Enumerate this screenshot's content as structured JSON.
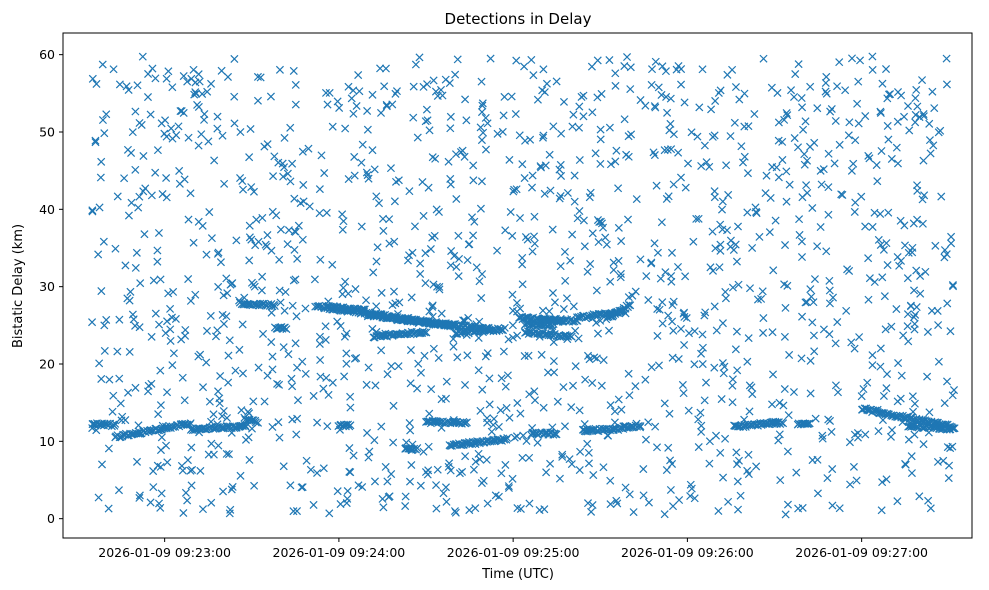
{
  "chart_data": {
    "type": "scatter",
    "title": "Detections in Delay",
    "xlabel": "Time (UTC)",
    "ylabel": "Bistatic Delay (km)",
    "marker": "x",
    "color": "#1f77b4",
    "grid": false,
    "x_is_time": true,
    "xlim": [
      "2026-01-09 09:22:25",
      "2026-01-09 09:27:38"
    ],
    "ylim": [
      -2.5,
      62.8
    ],
    "xticks": [
      "2026-01-09 09:23:00",
      "2026-01-09 09:24:00",
      "2026-01-09 09:25:00",
      "2026-01-09 09:26:00",
      "2026-01-09 09:27:00"
    ],
    "yticks": [
      0,
      10,
      20,
      30,
      40,
      50,
      60
    ],
    "noise": {
      "approx_count": 1500,
      "x_range": [
        "2026-01-09 09:22:35",
        "2026-01-09 09:27:32"
      ],
      "y_range": [
        0.5,
        60
      ]
    },
    "tracks": [
      {
        "from": [
          "2026-01-09 09:22:35",
          12.2
        ],
        "to": [
          "2026-01-09 09:22:43",
          12.1
        ]
      },
      {
        "from": [
          "2026-01-09 09:22:43",
          10.6
        ],
        "to": [
          "2026-01-09 09:23:09",
          12.3
        ]
      },
      {
        "from": [
          "2026-01-09 09:23:09",
          11.5
        ],
        "to": [
          "2026-01-09 09:23:28",
          12.0
        ]
      },
      {
        "from": [
          "2026-01-09 09:23:28",
          12.7
        ],
        "to": [
          "2026-01-09 09:23:32",
          12.5
        ]
      },
      {
        "from": [
          "2026-01-09 09:23:26",
          27.8
        ],
        "to": [
          "2026-01-09 09:23:38",
          27.6
        ]
      },
      {
        "from": [
          "2026-01-09 09:23:38",
          24.6
        ],
        "to": [
          "2026-01-09 09:23:42",
          24.6
        ]
      },
      {
        "from": [
          "2026-01-09 09:23:52",
          27.5
        ],
        "to": [
          "2026-01-09 09:24:24",
          25.8
        ]
      },
      {
        "from": [
          "2026-01-09 09:24:00",
          12.0
        ],
        "to": [
          "2026-01-09 09:24:04",
          12.0
        ]
      },
      {
        "from": [
          "2026-01-09 09:23:56",
          27.4
        ],
        "to": [
          "2026-01-09 09:24:09",
          26.9
        ]
      },
      {
        "from": [
          "2026-01-09 09:24:10",
          26.3
        ],
        "to": [
          "2026-01-09 09:24:52",
          24.5
        ]
      },
      {
        "from": [
          "2026-01-09 09:24:20",
          25.8
        ],
        "to": [
          "2026-01-09 09:24:40",
          24.9
        ]
      },
      {
        "from": [
          "2026-01-09 09:24:12",
          23.5
        ],
        "to": [
          "2026-01-09 09:24:30",
          24.2
        ]
      },
      {
        "from": [
          "2026-01-09 09:24:40",
          24.0
        ],
        "to": [
          "2026-01-09 09:24:57",
          24.5
        ]
      },
      {
        "from": [
          "2026-01-09 09:24:23",
          9.0
        ],
        "to": [
          "2026-01-09 09:24:27",
          9.0
        ]
      },
      {
        "from": [
          "2026-01-09 09:24:30",
          12.5
        ],
        "to": [
          "2026-01-09 09:24:44",
          12.4
        ]
      },
      {
        "from": [
          "2026-01-09 09:24:38",
          9.5
        ],
        "to": [
          "2026-01-09 09:24:58",
          10.3
        ]
      },
      {
        "from": [
          "2026-01-09 09:25:02",
          26.0
        ],
        "to": [
          "2026-01-09 09:25:17",
          25.5
        ]
      },
      {
        "from": [
          "2026-01-09 09:25:04",
          25.2
        ],
        "to": [
          "2026-01-09 09:25:14",
          25.0
        ]
      },
      {
        "from": [
          "2026-01-09 09:25:04",
          24.1
        ],
        "to": [
          "2026-01-09 09:25:20",
          23.5
        ]
      },
      {
        "from": [
          "2026-01-09 09:25:06",
          11.0
        ],
        "to": [
          "2026-01-09 09:25:15",
          11.0
        ]
      },
      {
        "from": [
          "2026-01-09 09:25:24",
          11.4
        ],
        "to": [
          "2026-01-09 09:25:38",
          11.6
        ]
      },
      {
        "from": [
          "2026-01-09 09:25:10",
          25.8
        ],
        "to": [
          "2026-01-09 09:25:22",
          25.6
        ]
      },
      {
        "from": [
          "2026-01-09 09:25:22",
          26.0
        ],
        "to": [
          "2026-01-09 09:25:38",
          26.8
        ]
      },
      {
        "from": [
          "2026-01-09 09:25:32",
          25.8
        ],
        "to": [
          "2026-01-09 09:25:40",
          27.6
        ]
      },
      {
        "from": [
          "2026-01-09 09:25:38",
          11.9
        ],
        "to": [
          "2026-01-09 09:25:44",
          11.9
        ]
      },
      {
        "from": [
          "2026-01-09 09:26:16",
          11.9
        ],
        "to": [
          "2026-01-09 09:26:31",
          12.4
        ]
      },
      {
        "from": [
          "2026-01-09 09:26:29",
          12.4
        ],
        "to": [
          "2026-01-09 09:26:33",
          12.4
        ]
      },
      {
        "from": [
          "2026-01-09 09:26:38",
          12.3
        ],
        "to": [
          "2026-01-09 09:26:42",
          12.4
        ]
      },
      {
        "from": [
          "2026-01-09 09:27:00",
          14.2
        ],
        "to": [
          "2026-01-09 09:27:31",
          11.9
        ]
      },
      {
        "from": [
          "2026-01-09 09:27:16",
          12.0
        ],
        "to": [
          "2026-01-09 09:27:32",
          11.6
        ]
      }
    ]
  }
}
